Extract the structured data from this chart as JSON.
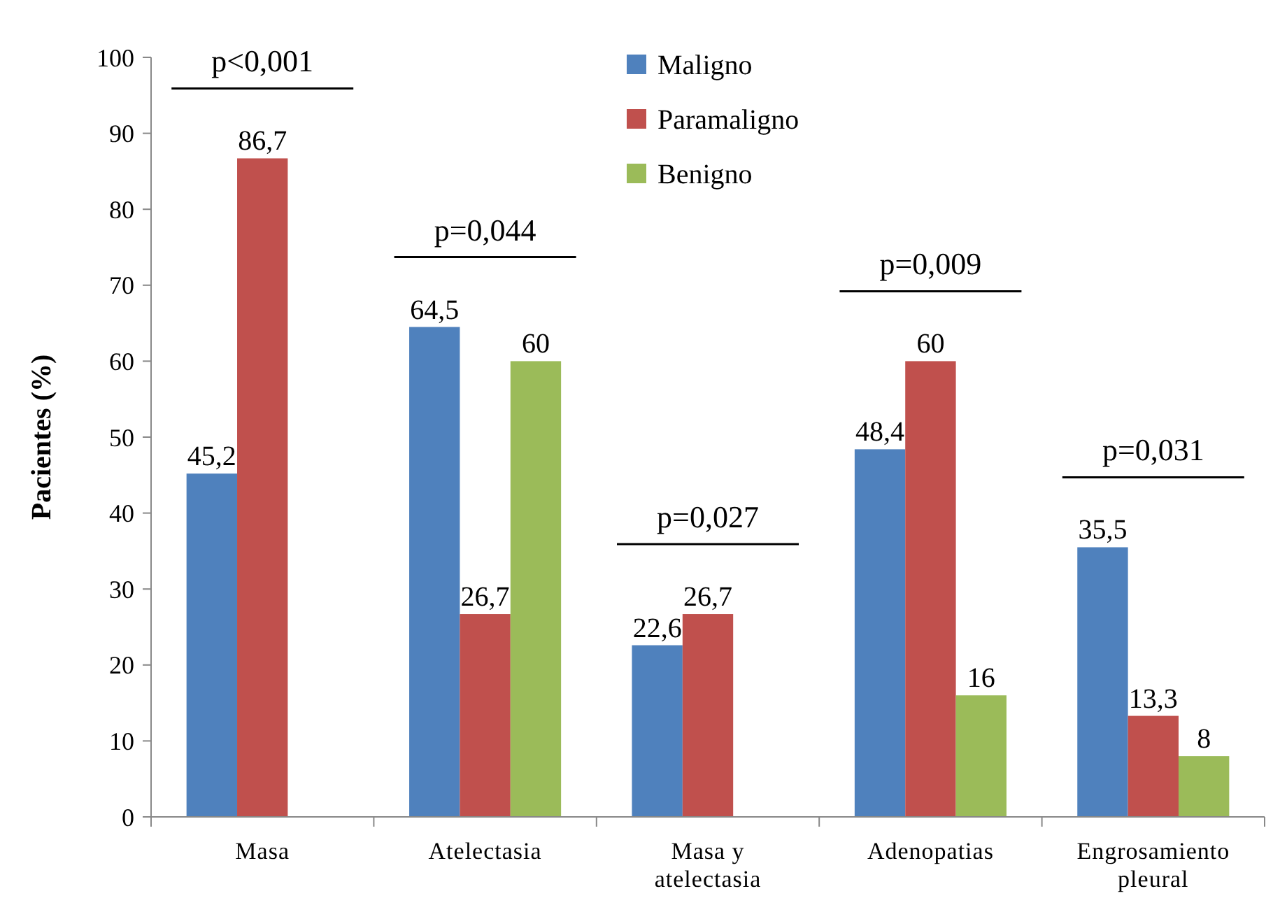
{
  "chart_data": {
    "type": "bar",
    "ylabel": "Pacientes (%)",
    "categories": [
      "Masa",
      "Atelectasia",
      "Masa y atelectasia",
      "Adenopatias",
      "Engrosamiento pleural"
    ],
    "series": [
      {
        "name": "Maligno",
        "color": "#4f81bd",
        "values": [
          45.2,
          64.5,
          22.6,
          48.4,
          35.5
        ],
        "value_labels": [
          "45,2",
          "64,5",
          "22,6",
          "48,4",
          "35,5"
        ]
      },
      {
        "name": "Paramaligno",
        "color": "#c0504d",
        "values": [
          86.7,
          26.7,
          26.7,
          60,
          13.3
        ],
        "value_labels": [
          "86,7",
          "26,7",
          "26,7",
          "60",
          "13,3"
        ]
      },
      {
        "name": "Benigno",
        "color": "#9bbb59",
        "values": [
          null,
          60,
          null,
          16,
          8
        ],
        "value_labels": [
          null,
          "60",
          null,
          "16",
          "8"
        ]
      }
    ],
    "ylim": [
      0,
      100
    ],
    "yticks": [
      0,
      10,
      20,
      30,
      40,
      50,
      60,
      70,
      80,
      90,
      100
    ],
    "grid": false,
    "legend": "top",
    "annotations": [
      "p<0,001",
      "p=0,044",
      "p=0,027",
      "p=0,009",
      "p=0,031"
    ]
  }
}
